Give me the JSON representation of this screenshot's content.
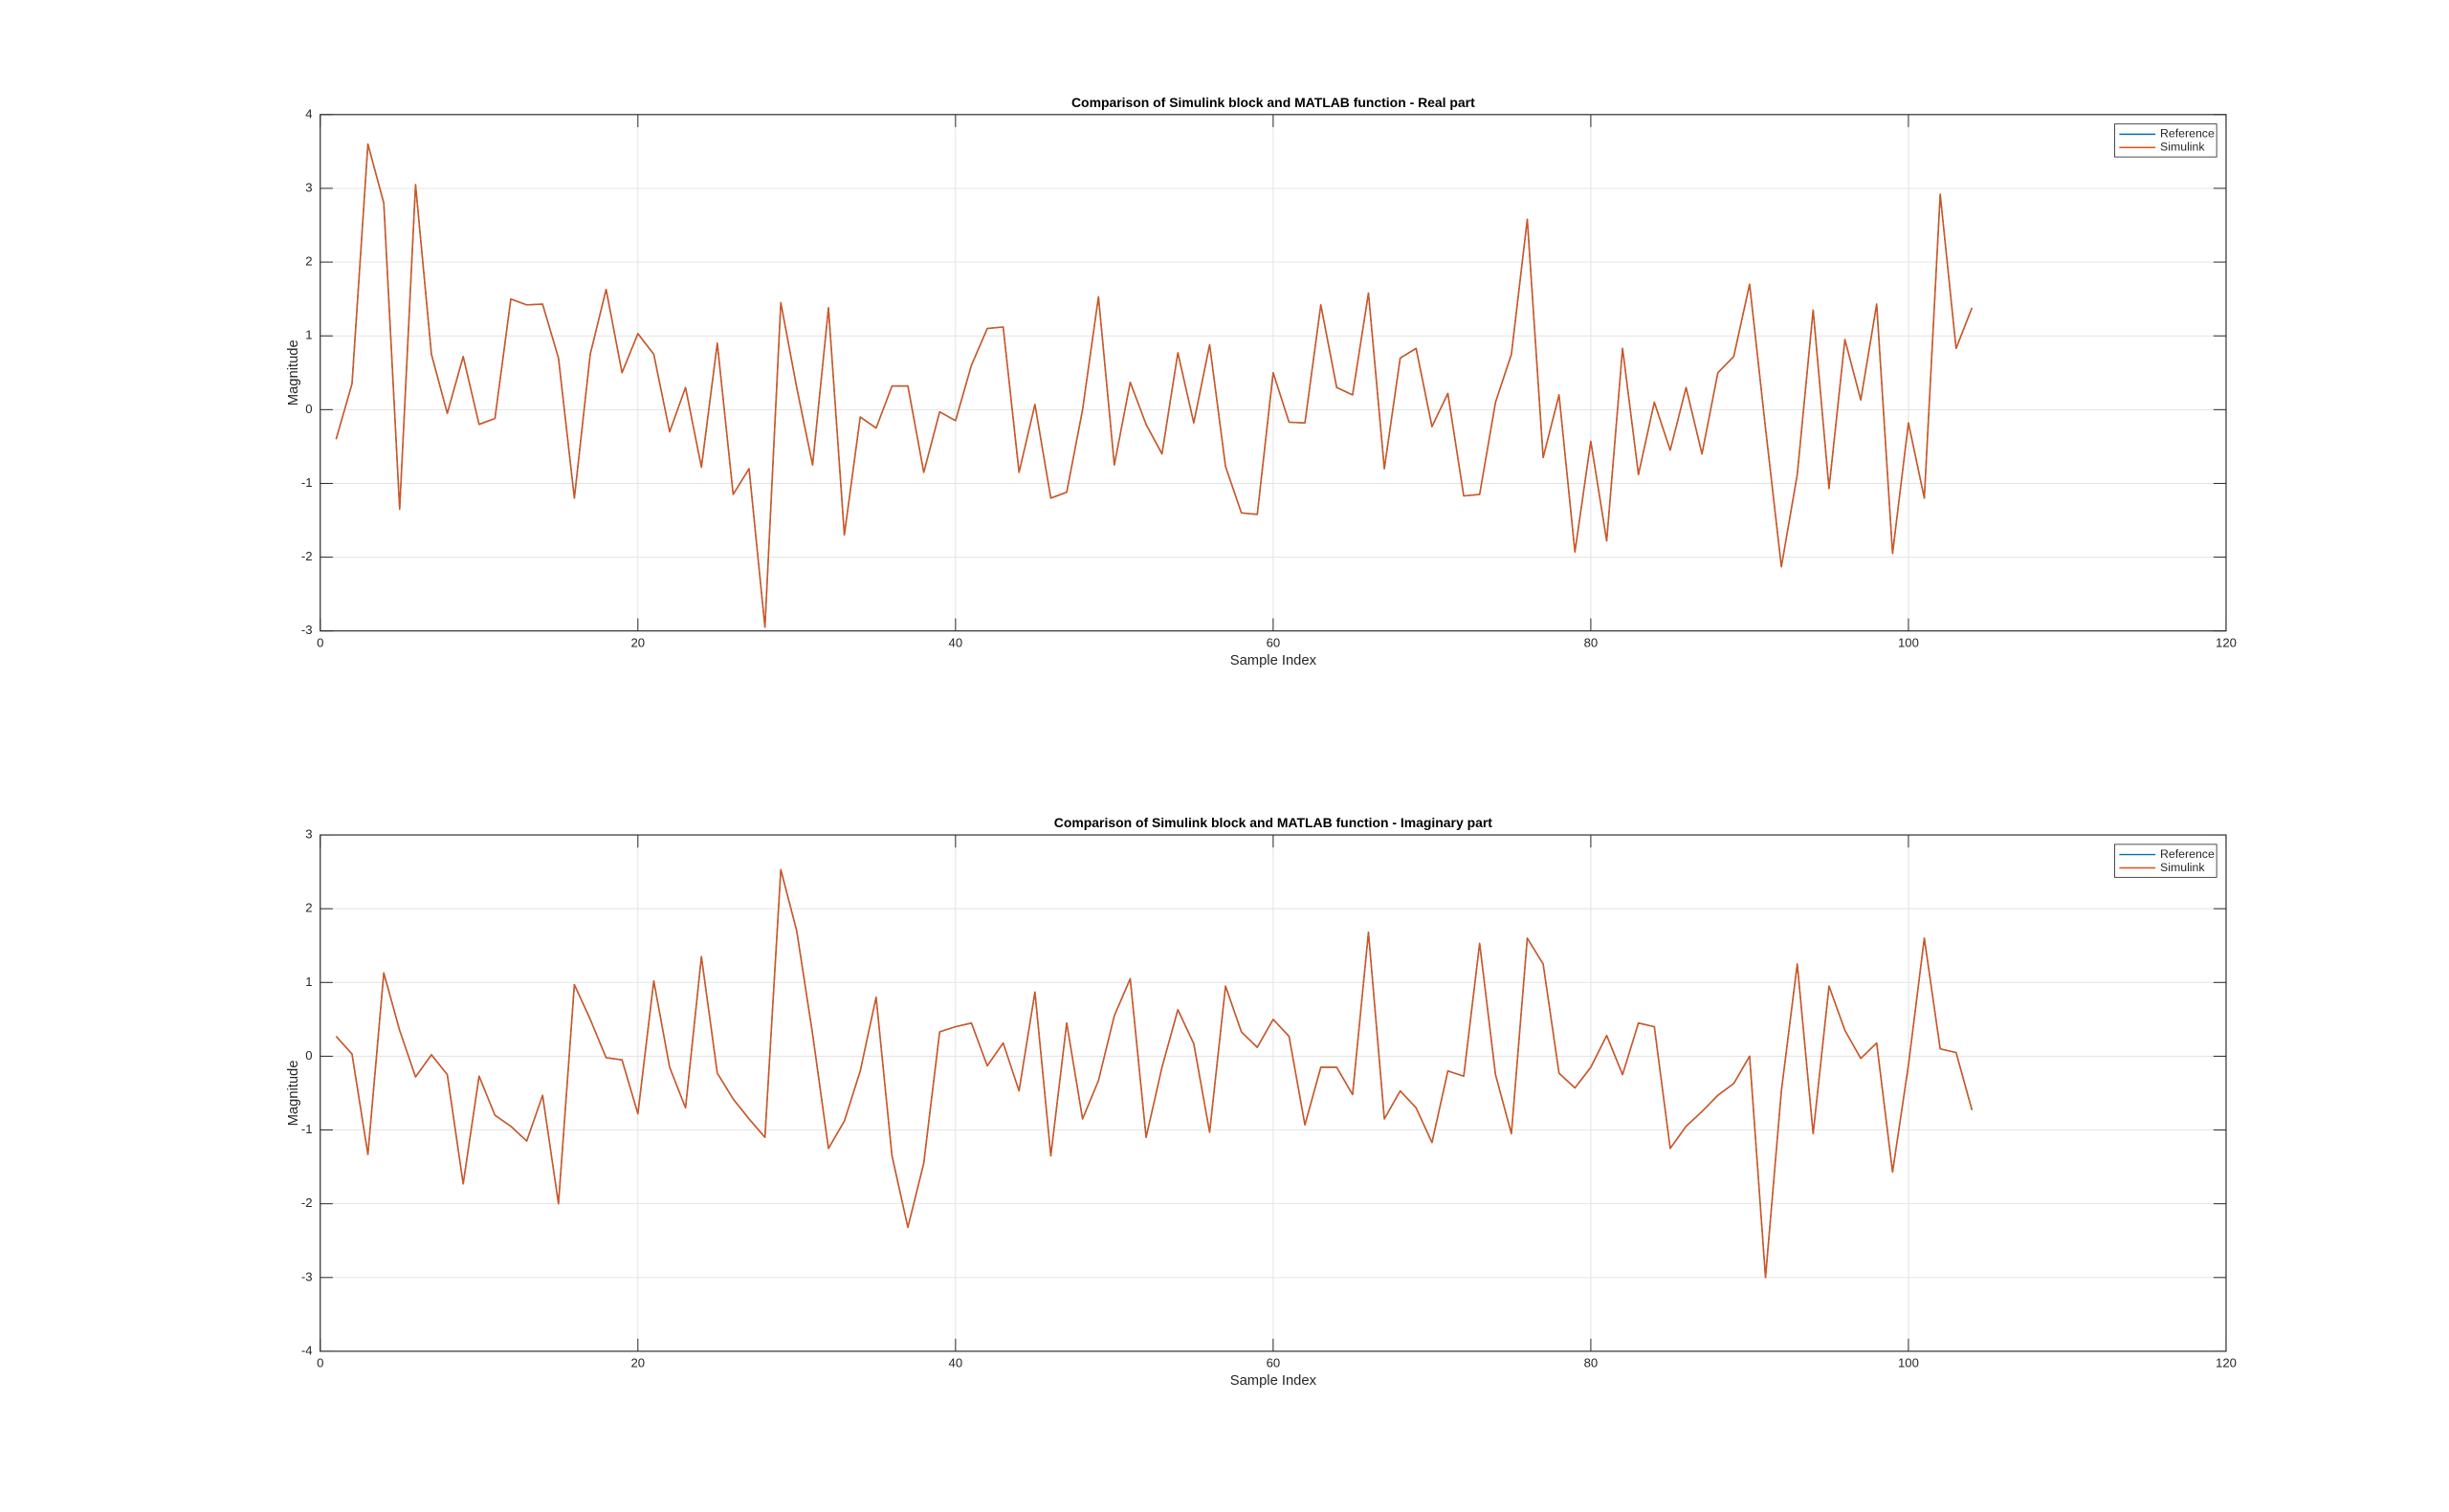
{
  "chart_data": [
    {
      "type": "line",
      "title": "Comparison of Simulink block and MATLAB function - Real part",
      "xlabel": "Sample Index",
      "ylabel": "Magnitude",
      "x": [
        1,
        2,
        3,
        4,
        5,
        6,
        7,
        8,
        9,
        10,
        11,
        12,
        13,
        14,
        15,
        16,
        17,
        18,
        19,
        20,
        21,
        22,
        23,
        24,
        25,
        26,
        27,
        28,
        29,
        30,
        31,
        32,
        33,
        34,
        35,
        36,
        37,
        38,
        39,
        40,
        41,
        42,
        43,
        44,
        45,
        46,
        47,
        48,
        49,
        50,
        51,
        52,
        53,
        54,
        55,
        56,
        57,
        58,
        59,
        60,
        61,
        62,
        63,
        64,
        65,
        66,
        67,
        68,
        69,
        70,
        71,
        72,
        73,
        74,
        75,
        76,
        77,
        78,
        79,
        80,
        81,
        82,
        83,
        84,
        85,
        86,
        87,
        88,
        89,
        90,
        91,
        92,
        93,
        94,
        95,
        96,
        97,
        98,
        99,
        100,
        101,
        102,
        103,
        104
      ],
      "series": [
        {
          "name": "Reference",
          "color": "#0072bd",
          "values": [
            -0.4,
            0.35,
            3.6,
            2.8,
            -1.35,
            3.05,
            0.75,
            -0.05,
            0.72,
            -0.2,
            -0.12,
            1.5,
            1.42,
            1.43,
            0.7,
            -1.2,
            0.75,
            1.63,
            0.5,
            1.03,
            0.75,
            -0.3,
            0.3,
            -0.78,
            0.9,
            -1.15,
            -0.8,
            -2.95,
            1.45,
            0.3,
            -0.75,
            1.38,
            -1.7,
            -0.1,
            -0.25,
            0.32,
            0.32,
            -0.85,
            -0.03,
            -0.15,
            0.6,
            1.1,
            1.12,
            -0.85,
            0.07,
            -1.2,
            -1.12,
            0.0,
            1.53,
            -0.75,
            0.37,
            -0.2,
            -0.6,
            0.77,
            -0.18,
            0.88,
            -0.77,
            -1.4,
            -1.42,
            0.5,
            -0.17,
            -0.18,
            1.42,
            0.3,
            0.2,
            1.58,
            -0.8,
            0.7,
            0.83,
            -0.23,
            0.22,
            -1.17,
            -1.15,
            0.1,
            0.75,
            2.58,
            -0.65,
            0.2,
            -1.93,
            -0.43,
            -1.78,
            0.83,
            -0.88,
            0.1,
            -0.55,
            0.3,
            -0.6,
            0.5,
            0.72,
            1.7,
            -0.25,
            -2.13,
            -0.88,
            1.35,
            -1.07,
            0.95,
            0.13,
            1.43,
            -1.95,
            -0.18,
            -1.2,
            2.92,
            0.83,
            1.38
          ]
        },
        {
          "name": "Simulink",
          "color": "#d95319",
          "values": [
            -0.4,
            0.35,
            3.6,
            2.8,
            -1.35,
            3.05,
            0.75,
            -0.05,
            0.72,
            -0.2,
            -0.12,
            1.5,
            1.42,
            1.43,
            0.7,
            -1.2,
            0.75,
            1.63,
            0.5,
            1.03,
            0.75,
            -0.3,
            0.3,
            -0.78,
            0.9,
            -1.15,
            -0.8,
            -2.95,
            1.45,
            0.3,
            -0.75,
            1.38,
            -1.7,
            -0.1,
            -0.25,
            0.32,
            0.32,
            -0.85,
            -0.03,
            -0.15,
            0.6,
            1.1,
            1.12,
            -0.85,
            0.07,
            -1.2,
            -1.12,
            0.0,
            1.53,
            -0.75,
            0.37,
            -0.2,
            -0.6,
            0.77,
            -0.18,
            0.88,
            -0.77,
            -1.4,
            -1.42,
            0.5,
            -0.17,
            -0.18,
            1.42,
            0.3,
            0.2,
            1.58,
            -0.8,
            0.7,
            0.83,
            -0.23,
            0.22,
            -1.17,
            -1.15,
            0.1,
            0.75,
            2.58,
            -0.65,
            0.2,
            -1.93,
            -0.43,
            -1.78,
            0.83,
            -0.88,
            0.1,
            -0.55,
            0.3,
            -0.6,
            0.5,
            0.72,
            1.7,
            -0.25,
            -2.13,
            -0.88,
            1.35,
            -1.07,
            0.95,
            0.13,
            1.43,
            -1.95,
            -0.18,
            -1.2,
            2.92,
            0.83,
            1.38
          ]
        }
      ],
      "xlim": [
        0,
        120
      ],
      "xticks": [
        0,
        20,
        40,
        60,
        80,
        100,
        120
      ],
      "ylim": [
        -3,
        4
      ],
      "yticks": [
        -3,
        -2,
        -1,
        0,
        1,
        2,
        3,
        4
      ],
      "grid": true,
      "legend": "upper right"
    },
    {
      "type": "line",
      "title": "Comparison of Simulink block and MATLAB function - Imaginary part",
      "xlabel": "Sample Index",
      "ylabel": "Magnitude",
      "x": [
        1,
        2,
        3,
        4,
        5,
        6,
        7,
        8,
        9,
        10,
        11,
        12,
        13,
        14,
        15,
        16,
        17,
        18,
        19,
        20,
        21,
        22,
        23,
        24,
        25,
        26,
        27,
        28,
        29,
        30,
        31,
        32,
        33,
        34,
        35,
        36,
        37,
        38,
        39,
        40,
        41,
        42,
        43,
        44,
        45,
        46,
        47,
        48,
        49,
        50,
        51,
        52,
        53,
        54,
        55,
        56,
        57,
        58,
        59,
        60,
        61,
        62,
        63,
        64,
        65,
        66,
        67,
        68,
        69,
        70,
        71,
        72,
        73,
        74,
        75,
        76,
        77,
        78,
        79,
        80,
        81,
        82,
        83,
        84,
        85,
        86,
        87,
        88,
        89,
        90,
        91,
        92,
        93,
        94,
        95,
        96,
        97,
        98,
        99,
        100,
        101,
        102,
        103,
        104
      ],
      "series": [
        {
          "name": "Reference",
          "color": "#0072bd",
          "values": [
            0.27,
            0.03,
            -1.33,
            1.13,
            0.35,
            -0.28,
            0.02,
            -0.25,
            -1.73,
            -0.27,
            -0.8,
            -0.95,
            -1.15,
            -0.53,
            -2.0,
            0.97,
            0.5,
            -0.02,
            -0.05,
            -0.78,
            1.02,
            -0.15,
            -0.7,
            1.35,
            -0.23,
            -0.58,
            -0.85,
            -1.1,
            2.53,
            1.7,
            0.3,
            -1.25,
            -0.88,
            -0.2,
            0.8,
            -1.35,
            -2.32,
            -1.45,
            0.33,
            0.4,
            0.45,
            -0.13,
            0.18,
            -0.47,
            0.87,
            -1.35,
            0.45,
            -0.85,
            -0.33,
            0.55,
            1.05,
            -1.1,
            -0.15,
            0.63,
            0.17,
            -1.03,
            0.95,
            0.33,
            0.12,
            0.5,
            0.27,
            -0.93,
            -0.15,
            -0.15,
            -0.52,
            1.68,
            -0.85,
            -0.47,
            -0.7,
            -1.17,
            -0.2,
            -0.27,
            1.53,
            -0.25,
            -1.05,
            1.6,
            1.25,
            -0.23,
            -0.43,
            -0.15,
            0.28,
            -0.25,
            0.45,
            0.4,
            -1.25,
            -0.95,
            -0.75,
            -0.53,
            -0.37,
            0.0,
            -3.0,
            -0.47,
            1.25,
            -1.05,
            0.95,
            0.35,
            -0.03,
            0.18,
            -1.57,
            -0.12,
            1.6,
            0.1,
            0.05,
            -0.73
          ]
        },
        {
          "name": "Simulink",
          "color": "#d95319",
          "values": [
            0.27,
            0.03,
            -1.33,
            1.13,
            0.35,
            -0.28,
            0.02,
            -0.25,
            -1.73,
            -0.27,
            -0.8,
            -0.95,
            -1.15,
            -0.53,
            -2.0,
            0.97,
            0.5,
            -0.02,
            -0.05,
            -0.78,
            1.02,
            -0.15,
            -0.7,
            1.35,
            -0.23,
            -0.58,
            -0.85,
            -1.1,
            2.53,
            1.7,
            0.3,
            -1.25,
            -0.88,
            -0.2,
            0.8,
            -1.35,
            -2.32,
            -1.45,
            0.33,
            0.4,
            0.45,
            -0.13,
            0.18,
            -0.47,
            0.87,
            -1.35,
            0.45,
            -0.85,
            -0.33,
            0.55,
            1.05,
            -1.1,
            -0.15,
            0.63,
            0.17,
            -1.03,
            0.95,
            0.33,
            0.12,
            0.5,
            0.27,
            -0.93,
            -0.15,
            -0.15,
            -0.52,
            1.68,
            -0.85,
            -0.47,
            -0.7,
            -1.17,
            -0.2,
            -0.27,
            1.53,
            -0.25,
            -1.05,
            1.6,
            1.25,
            -0.23,
            -0.43,
            -0.15,
            0.28,
            -0.25,
            0.45,
            0.4,
            -1.25,
            -0.95,
            -0.75,
            -0.53,
            -0.37,
            0.0,
            -3.0,
            -0.47,
            1.25,
            -1.05,
            0.95,
            0.35,
            -0.03,
            0.18,
            -1.57,
            -0.12,
            1.6,
            0.1,
            0.05,
            -0.73
          ]
        }
      ],
      "xlim": [
        0,
        120
      ],
      "xticks": [
        0,
        20,
        40,
        60,
        80,
        100,
        120
      ],
      "ylim": [
        -4,
        3
      ],
      "yticks": [
        -4,
        -3,
        -2,
        -1,
        0,
        1,
        2,
        3
      ],
      "grid": true,
      "legend": "upper right"
    }
  ]
}
